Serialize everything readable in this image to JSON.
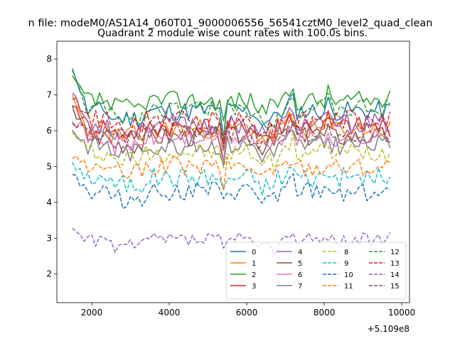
{
  "chart_data": {
    "type": "line",
    "suptitle": "n file: modeM0/AS1A14_060T01_9000006556_56541cztM0_level2_quad_clean",
    "title": "Quadrant 2 module wise count rates with 100.0s bins.",
    "xlabel": "",
    "ylabel": "",
    "x_offset_label": "+5.109e8",
    "xlim": [
      1100,
      10200
    ],
    "ylim": [
      1.2,
      8.5
    ],
    "xticks": [
      2000,
      4000,
      6000,
      8000,
      10000
    ],
    "xtick_labels": [
      "2000",
      "4000",
      "6000",
      "8000",
      "10000"
    ],
    "yticks": [
      2,
      3,
      4,
      5,
      6,
      7,
      8
    ],
    "ytick_labels": [
      "2",
      "3",
      "4",
      "5",
      "6",
      "7",
      "8"
    ],
    "legend_position": "lower-right",
    "x_range": [
      1500,
      9750
    ],
    "x_step": 100,
    "dips": [
      [
        4350,
        0.55
      ],
      [
        5450,
        1.0
      ],
      [
        5550,
        1.0
      ],
      [
        9750,
        0.6
      ]
    ],
    "series": [
      {
        "name": "0",
        "color": "#1f77b4",
        "dash": "solid",
        "level": 6.55,
        "start": 7.8,
        "seed": 11
      },
      {
        "name": "1",
        "color": "#ff7f0e",
        "dash": "solid",
        "level": 6.05,
        "start": 6.9,
        "seed": 23
      },
      {
        "name": "2",
        "color": "#2ca02c",
        "dash": "solid",
        "level": 6.85,
        "start": 7.4,
        "seed": 37
      },
      {
        "name": "3",
        "color": "#d62728",
        "dash": "solid",
        "level": 6.1,
        "start": 6.8,
        "seed": 41
      },
      {
        "name": "4",
        "color": "#9467bd",
        "dash": "solid",
        "level": 6.2,
        "start": 7.0,
        "seed": 53
      },
      {
        "name": "5",
        "color": "#8c564b",
        "dash": "solid",
        "level": 5.85,
        "start": 6.6,
        "seed": 67
      },
      {
        "name": "6",
        "color": "#e377c2",
        "dash": "solid",
        "level": 5.8,
        "start": 6.4,
        "seed": 71
      },
      {
        "name": "7",
        "color": "#7f7f7f",
        "dash": "solid",
        "level": 5.6,
        "start": 6.0,
        "seed": 83
      },
      {
        "name": "8",
        "color": "#bcbd22",
        "dash": "dashed",
        "level": 5.4,
        "start": 5.9,
        "seed": 97
      },
      {
        "name": "9",
        "color": "#17becf",
        "dash": "dashed",
        "level": 4.7,
        "start": 5.0,
        "seed": 101
      },
      {
        "name": "10",
        "color": "#1f77b4",
        "dash": "dashed",
        "level": 4.3,
        "start": 4.8,
        "seed": 113
      },
      {
        "name": "11",
        "color": "#ff7f0e",
        "dash": "dashed",
        "level": 5.0,
        "start": 5.2,
        "seed": 127
      },
      {
        "name": "12",
        "color": "#2ca02c",
        "dash": "dashed",
        "level": 6.6,
        "start": 7.6,
        "seed": 131
      },
      {
        "name": "13",
        "color": "#d62728",
        "dash": "dashed",
        "level": 6.3,
        "start": 7.0,
        "seed": 149
      },
      {
        "name": "14",
        "color": "#9467bd",
        "dash": "dashed",
        "level": 2.95,
        "start": 3.3,
        "seed": 157
      },
      {
        "name": "15",
        "color": "#8c564b",
        "dash": "dashed",
        "level": 5.95,
        "start": 6.3,
        "seed": 163
      }
    ]
  }
}
